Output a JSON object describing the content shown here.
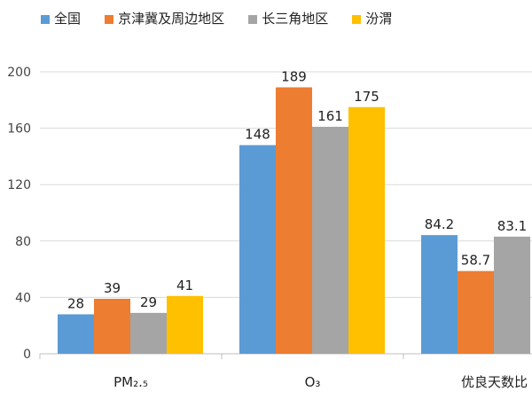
{
  "chart_data": {
    "type": "bar",
    "categories": [
      "PM₂.₅",
      "O₃",
      "优良天数比"
    ],
    "series": [
      {
        "name": "全国",
        "color": "#5b9bd5",
        "values": [
          28,
          148,
          84.2
        ],
        "labels": [
          "28",
          "148",
          "84.2"
        ]
      },
      {
        "name": "京津冀及周边地区",
        "color": "#ed7d31",
        "values": [
          39,
          189,
          58.7
        ],
        "labels": [
          "39",
          "189",
          "58.7"
        ]
      },
      {
        "name": "长三角地区",
        "color": "#a5a5a5",
        "values": [
          29,
          161,
          83.1
        ],
        "labels": [
          "29",
          "161",
          "83.1"
        ]
      },
      {
        "name": "汾渭",
        "color": "#ffc000",
        "values": [
          41,
          175,
          null
        ],
        "labels": [
          "41",
          "175",
          ""
        ]
      }
    ],
    "yticks": [
      "0",
      "40",
      "80",
      "120",
      "160",
      "200"
    ],
    "ylim": [
      0,
      200
    ],
    "grid": true,
    "legend": "top"
  }
}
